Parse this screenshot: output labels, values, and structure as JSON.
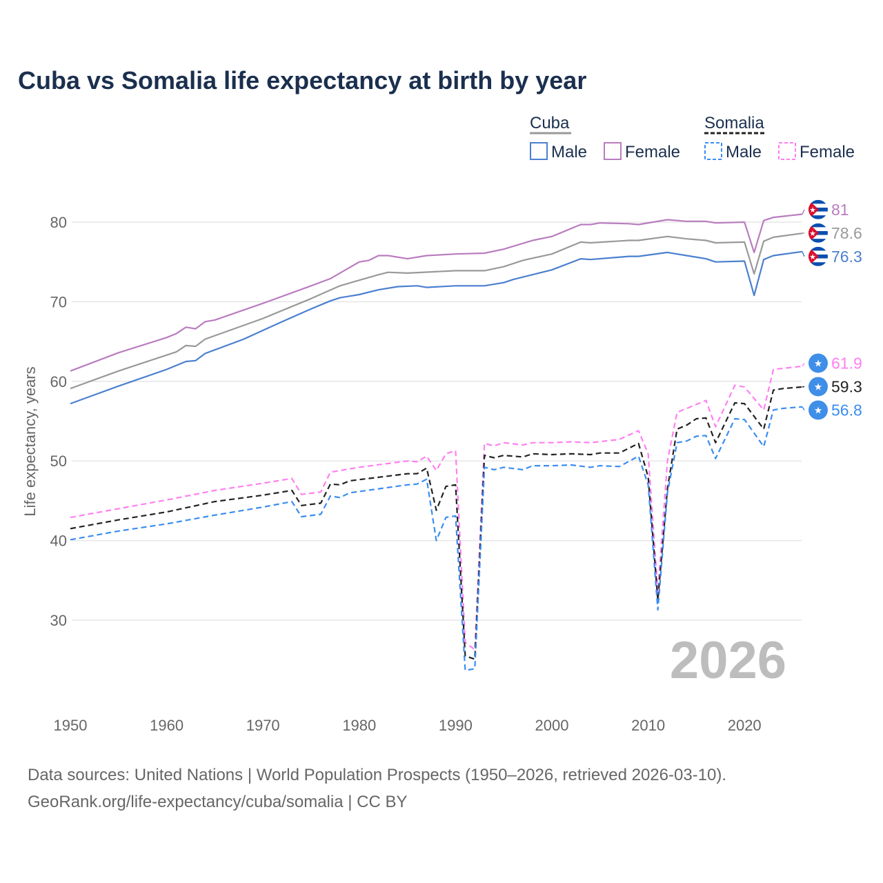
{
  "chart_data": {
    "type": "line",
    "title": "Cuba vs Somalia life expectancy at birth by year",
    "xlabel": "",
    "ylabel": "Life expectancy, years",
    "xlim": [
      1950,
      2026
    ],
    "ylim": [
      20,
      85
    ],
    "x_ticks": [
      "1950",
      "1960",
      "1970",
      "1980",
      "1990",
      "2000",
      "2010",
      "2020"
    ],
    "y_ticks": [
      "30",
      "40",
      "50",
      "60",
      "70",
      "80"
    ],
    "grid": true,
    "year_label": "2026",
    "legend": {
      "placement": "top-right",
      "groups": [
        {
          "name": "Cuba",
          "items": [
            "Male",
            "Female"
          ]
        },
        {
          "name": "Somalia",
          "items": [
            "Male",
            "Female"
          ]
        }
      ]
    },
    "colors": {
      "cuba_male": "#4a7fcf",
      "cuba_total": "#999999",
      "cuba_female": "#b97cbf",
      "somalia_male": "#3a8cf0",
      "somalia_total": "#222222",
      "somalia_female": "#ff7ff2",
      "cuba_flag_blue": "#0a4fb0",
      "cuba_flag_red": "#d8102c",
      "somalia_flag": "#3f8ee8"
    },
    "series": [
      {
        "key": "cuba_female",
        "country": "Cuba",
        "name": "Female",
        "dashed": false,
        "end_label": "81",
        "points": [
          [
            1950,
            61.3
          ],
          [
            1955,
            63.6
          ],
          [
            1960,
            65.5
          ],
          [
            1961,
            66.0
          ],
          [
            1962,
            66.8
          ],
          [
            1963,
            66.6
          ],
          [
            1964,
            67.5
          ],
          [
            1965,
            67.7
          ],
          [
            1970,
            69.8
          ],
          [
            1975,
            72.0
          ],
          [
            1977,
            72.9
          ],
          [
            1980,
            75.0
          ],
          [
            1981,
            75.2
          ],
          [
            1982,
            75.8
          ],
          [
            1983,
            75.8
          ],
          [
            1985,
            75.4
          ],
          [
            1987,
            75.8
          ],
          [
            1990,
            76.0
          ],
          [
            1993,
            76.1
          ],
          [
            1995,
            76.6
          ],
          [
            1998,
            77.7
          ],
          [
            2000,
            78.2
          ],
          [
            2003,
            79.7
          ],
          [
            2004,
            79.7
          ],
          [
            2005,
            79.9
          ],
          [
            2008,
            79.8
          ],
          [
            2009,
            79.7
          ],
          [
            2012,
            80.3
          ],
          [
            2014,
            80.1
          ],
          [
            2016,
            80.1
          ],
          [
            2017,
            79.9
          ],
          [
            2020,
            80.0
          ],
          [
            2021,
            76.2
          ],
          [
            2022,
            80.2
          ],
          [
            2023,
            80.6
          ],
          [
            2026,
            81.0
          ]
        ]
      },
      {
        "key": "cuba_total",
        "country": "Cuba",
        "name": "Total",
        "dashed": false,
        "end_label": "78.6",
        "points": [
          [
            1950,
            59.1
          ],
          [
            1955,
            61.3
          ],
          [
            1960,
            63.3
          ],
          [
            1961,
            63.7
          ],
          [
            1962,
            64.5
          ],
          [
            1963,
            64.4
          ],
          [
            1964,
            65.3
          ],
          [
            1970,
            67.9
          ],
          [
            1975,
            70.4
          ],
          [
            1978,
            72.0
          ],
          [
            1980,
            72.7
          ],
          [
            1982,
            73.4
          ],
          [
            1983,
            73.7
          ],
          [
            1985,
            73.6
          ],
          [
            1990,
            73.9
          ],
          [
            1993,
            73.9
          ],
          [
            1995,
            74.4
          ],
          [
            1997,
            75.2
          ],
          [
            2000,
            76.0
          ],
          [
            2003,
            77.5
          ],
          [
            2004,
            77.4
          ],
          [
            2008,
            77.7
          ],
          [
            2009,
            77.7
          ],
          [
            2012,
            78.2
          ],
          [
            2014,
            77.9
          ],
          [
            2016,
            77.7
          ],
          [
            2017,
            77.4
          ],
          [
            2020,
            77.5
          ],
          [
            2021,
            73.5
          ],
          [
            2022,
            77.6
          ],
          [
            2023,
            78.1
          ],
          [
            2026,
            78.6
          ]
        ]
      },
      {
        "key": "cuba_male",
        "country": "Cuba",
        "name": "Male",
        "dashed": false,
        "end_label": "76.3",
        "points": [
          [
            1950,
            57.2
          ],
          [
            1955,
            59.4
          ],
          [
            1960,
            61.5
          ],
          [
            1962,
            62.5
          ],
          [
            1963,
            62.6
          ],
          [
            1964,
            63.5
          ],
          [
            1968,
            65.3
          ],
          [
            1970,
            66.4
          ],
          [
            1972,
            67.5
          ],
          [
            1975,
            69.1
          ],
          [
            1977,
            70.1
          ],
          [
            1978,
            70.5
          ],
          [
            1980,
            70.9
          ],
          [
            1982,
            71.5
          ],
          [
            1984,
            71.9
          ],
          [
            1986,
            72.0
          ],
          [
            1987,
            71.8
          ],
          [
            1990,
            72.0
          ],
          [
            1993,
            72.0
          ],
          [
            1995,
            72.4
          ],
          [
            1996,
            72.8
          ],
          [
            2000,
            74.0
          ],
          [
            2003,
            75.4
          ],
          [
            2004,
            75.3
          ],
          [
            2008,
            75.7
          ],
          [
            2009,
            75.7
          ],
          [
            2012,
            76.2
          ],
          [
            2014,
            75.8
          ],
          [
            2016,
            75.4
          ],
          [
            2017,
            75.0
          ],
          [
            2020,
            75.1
          ],
          [
            2021,
            70.8
          ],
          [
            2022,
            75.3
          ],
          [
            2023,
            75.8
          ],
          [
            2026,
            76.3
          ]
        ]
      },
      {
        "key": "somalia_female",
        "country": "Somalia",
        "name": "Female",
        "dashed": true,
        "end_label": "61.9",
        "points": [
          [
            1950,
            42.9
          ],
          [
            1955,
            44.0
          ],
          [
            1960,
            45.1
          ],
          [
            1965,
            46.3
          ],
          [
            1970,
            47.2
          ],
          [
            1973,
            47.8
          ],
          [
            1974,
            45.8
          ],
          [
            1976,
            46.1
          ],
          [
            1977,
            48.6
          ],
          [
            1980,
            49.2
          ],
          [
            1985,
            50.0
          ],
          [
            1986,
            49.9
          ],
          [
            1987,
            50.6
          ],
          [
            1988,
            48.8
          ],
          [
            1989,
            50.9
          ],
          [
            1990,
            51.3
          ],
          [
            1991,
            27.2
          ],
          [
            1992,
            26.3
          ],
          [
            1993,
            52.2
          ],
          [
            1994,
            51.9
          ],
          [
            1995,
            52.3
          ],
          [
            1997,
            52.0
          ],
          [
            1998,
            52.3
          ],
          [
            2000,
            52.3
          ],
          [
            2002,
            52.4
          ],
          [
            2004,
            52.3
          ],
          [
            2007,
            52.7
          ],
          [
            2009,
            53.8
          ],
          [
            2010,
            50.9
          ],
          [
            2011,
            33.5
          ],
          [
            2012,
            50.0
          ],
          [
            2013,
            56.1
          ],
          [
            2016,
            57.6
          ],
          [
            2017,
            54.3
          ],
          [
            2019,
            59.5
          ],
          [
            2020,
            59.3
          ],
          [
            2022,
            56.4
          ],
          [
            2023,
            61.5
          ],
          [
            2026,
            61.9
          ]
        ]
      },
      {
        "key": "somalia_total",
        "country": "Somalia",
        "name": "Total",
        "dashed": true,
        "end_label": "59.3",
        "points": [
          [
            1950,
            41.5
          ],
          [
            1955,
            42.6
          ],
          [
            1960,
            43.6
          ],
          [
            1965,
            44.9
          ],
          [
            1970,
            45.7
          ],
          [
            1973,
            46.3
          ],
          [
            1974,
            44.4
          ],
          [
            1976,
            44.7
          ],
          [
            1977,
            47.1
          ],
          [
            1978,
            47.0
          ],
          [
            1979,
            47.5
          ],
          [
            1985,
            48.4
          ],
          [
            1986,
            48.4
          ],
          [
            1987,
            49.1
          ],
          [
            1988,
            43.8
          ],
          [
            1989,
            46.8
          ],
          [
            1990,
            47.0
          ],
          [
            1991,
            25.5
          ],
          [
            1992,
            25.1
          ],
          [
            1993,
            50.7
          ],
          [
            1994,
            50.4
          ],
          [
            1995,
            50.7
          ],
          [
            1997,
            50.5
          ],
          [
            1998,
            50.9
          ],
          [
            2000,
            50.8
          ],
          [
            2002,
            50.9
          ],
          [
            2004,
            50.8
          ],
          [
            2005,
            51.0
          ],
          [
            2007,
            51.0
          ],
          [
            2009,
            52.2
          ],
          [
            2010,
            48.0
          ],
          [
            2011,
            32.5
          ],
          [
            2012,
            46.5
          ],
          [
            2013,
            54.0
          ],
          [
            2014,
            54.5
          ],
          [
            2015,
            55.3
          ],
          [
            2016,
            55.4
          ],
          [
            2017,
            52.3
          ],
          [
            2019,
            57.3
          ],
          [
            2020,
            57.2
          ],
          [
            2022,
            54.0
          ],
          [
            2023,
            58.9
          ],
          [
            2024,
            59.1
          ],
          [
            2026,
            59.3
          ]
        ]
      },
      {
        "key": "somalia_male",
        "country": "Somalia",
        "name": "Male",
        "dashed": true,
        "end_label": "56.8",
        "points": [
          [
            1950,
            40.1
          ],
          [
            1955,
            41.2
          ],
          [
            1960,
            42.1
          ],
          [
            1965,
            43.2
          ],
          [
            1970,
            44.2
          ],
          [
            1973,
            44.9
          ],
          [
            1974,
            43.0
          ],
          [
            1976,
            43.3
          ],
          [
            1977,
            45.6
          ],
          [
            1978,
            45.4
          ],
          [
            1979,
            46.0
          ],
          [
            1985,
            47.0
          ],
          [
            1986,
            47.1
          ],
          [
            1987,
            47.7
          ],
          [
            1988,
            40.0
          ],
          [
            1989,
            42.9
          ],
          [
            1990,
            43.1
          ],
          [
            1991,
            23.7
          ],
          [
            1992,
            23.9
          ],
          [
            1993,
            49.2
          ],
          [
            1994,
            48.9
          ],
          [
            1995,
            49.2
          ],
          [
            1997,
            48.9
          ],
          [
            1998,
            49.4
          ],
          [
            2000,
            49.4
          ],
          [
            2002,
            49.5
          ],
          [
            2004,
            49.2
          ],
          [
            2005,
            49.4
          ],
          [
            2007,
            49.3
          ],
          [
            2009,
            50.6
          ],
          [
            2010,
            47.0
          ],
          [
            2011,
            31.3
          ],
          [
            2012,
            46.0
          ],
          [
            2013,
            52.3
          ],
          [
            2014,
            52.5
          ],
          [
            2015,
            53.1
          ],
          [
            2016,
            53.2
          ],
          [
            2017,
            50.3
          ],
          [
            2019,
            55.3
          ],
          [
            2020,
            55.2
          ],
          [
            2022,
            51.8
          ],
          [
            2023,
            56.4
          ],
          [
            2024,
            56.6
          ],
          [
            2026,
            56.8
          ]
        ]
      }
    ]
  },
  "footer": {
    "line1": "Data sources: United Nations | World Population Prospects (1950–2026, retrieved 2026-03-10).",
    "line2": "GeoRank.org/life-expectancy/cuba/somalia | CC BY"
  }
}
